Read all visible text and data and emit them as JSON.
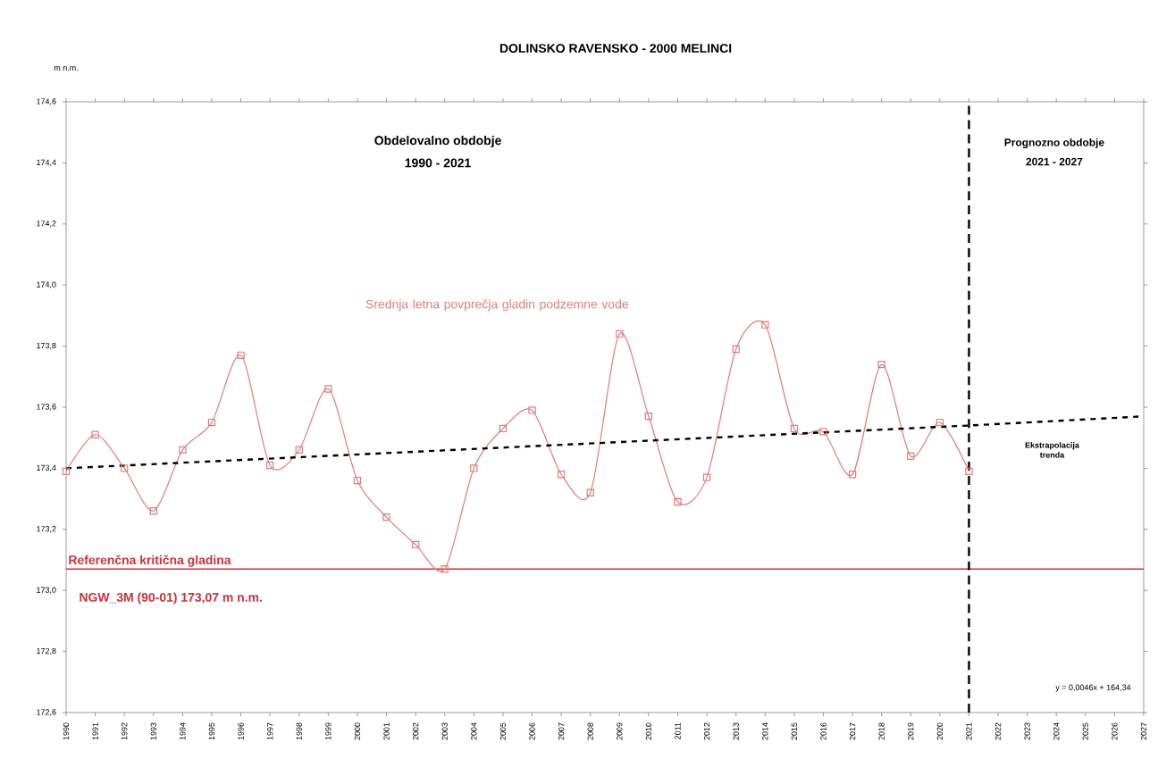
{
  "chart_data": {
    "type": "line",
    "title": "DOLINSKO RAVENSKO - 2000 MELINCI",
    "ylabel": "m n.m.",
    "xlim": [
      1990,
      2027
    ],
    "xticks": [
      1990,
      1991,
      1992,
      1993,
      1994,
      1995,
      1996,
      1997,
      1998,
      1999,
      2000,
      2001,
      2002,
      2003,
      2004,
      2005,
      2006,
      2007,
      2008,
      2009,
      2010,
      2011,
      2012,
      2013,
      2014,
      2015,
      2016,
      2017,
      2018,
      2019,
      2020,
      2021,
      2022,
      2023,
      2024,
      2025,
      2026,
      2027
    ],
    "ylim": [
      172.6,
      174.6
    ],
    "yticks": [
      {
        "value": 172.6,
        "label": "172,6"
      },
      {
        "value": 172.8,
        "label": "172,8"
      },
      {
        "value": 173.0,
        "label": "173,0"
      },
      {
        "value": 173.2,
        "label": "173,2"
      },
      {
        "value": 173.4,
        "label": "173,4"
      },
      {
        "value": 173.6,
        "label": "173,6"
      },
      {
        "value": 173.8,
        "label": "173,8"
      },
      {
        "value": 174.0,
        "label": "174,0"
      },
      {
        "value": 174.2,
        "label": "174,2"
      },
      {
        "value": 174.4,
        "label": "174,4"
      },
      {
        "value": 174.6,
        "label": "174,6"
      }
    ],
    "grid": false,
    "series": [
      {
        "name": "Srednja letna povprečja gladin podzemne vode",
        "color": "#e07b7b",
        "marker": "square",
        "line_style": "solid",
        "x": [
          1990,
          1991,
          1992,
          1993,
          1994,
          1995,
          1996,
          1997,
          1998,
          1999,
          2000,
          2001,
          2002,
          2003,
          2004,
          2005,
          2006,
          2007,
          2008,
          2009,
          2010,
          2011,
          2012,
          2013,
          2014,
          2015,
          2016,
          2017,
          2018,
          2019,
          2020,
          2021
        ],
        "values": [
          173.39,
          173.51,
          173.4,
          173.26,
          173.46,
          173.55,
          173.77,
          173.41,
          173.46,
          173.66,
          173.36,
          173.24,
          173.15,
          173.07,
          173.4,
          173.53,
          173.59,
          173.38,
          173.32,
          173.84,
          173.57,
          173.29,
          173.37,
          173.79,
          173.87,
          173.53,
          173.52,
          173.38,
          173.74,
          173.44,
          173.55,
          173.39
        ]
      },
      {
        "name": "Ekstrapolacija trenda",
        "color": "#000000",
        "marker": "none",
        "line_style": "dashed",
        "x": [
          1990,
          2021,
          2027
        ],
        "values": [
          173.4,
          173.54,
          173.57
        ]
      }
    ],
    "ref_lines": [
      {
        "axis": "y",
        "value": 173.07,
        "label": "Referenčna kritična gladina",
        "color": "#c8323a",
        "line_style": "solid"
      },
      {
        "axis": "x",
        "value": 2021,
        "color": "#000000",
        "line_style": "dashed"
      }
    ],
    "annotations": [
      "Obdelovalno obdobje",
      "1990 - 2021",
      "Prognozno obdobje",
      "2021 - 2027",
      "NGW_3M  (90-01)      173,07  m n.m.",
      "y = 0,0046x + 164,34"
    ]
  }
}
